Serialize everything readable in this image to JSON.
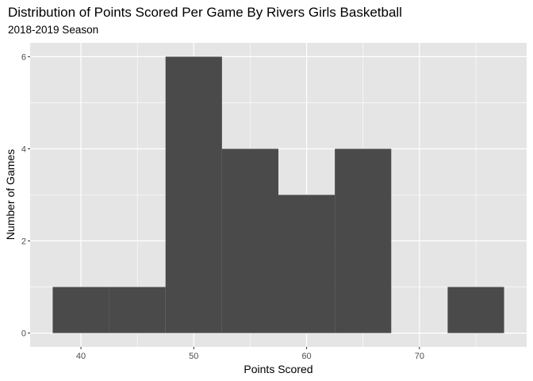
{
  "chart_data": {
    "type": "bar",
    "title": "Distribution of Points Scored Per Game By Rivers Girls Basketball",
    "subtitle": "2018-2019 Season",
    "xlabel": "Points Scored",
    "ylabel": "Number of Games",
    "bins": [
      {
        "x0": 37.5,
        "x1": 42.5,
        "count": 1
      },
      {
        "x0": 42.5,
        "x1": 47.5,
        "count": 1
      },
      {
        "x0": 47.5,
        "x1": 52.5,
        "count": 6
      },
      {
        "x0": 52.5,
        "x1": 57.5,
        "count": 4
      },
      {
        "x0": 57.5,
        "x1": 62.5,
        "count": 3
      },
      {
        "x0": 62.5,
        "x1": 67.5,
        "count": 4
      },
      {
        "x0": 67.5,
        "x1": 72.5,
        "count": 0
      },
      {
        "x0": 72.5,
        "x1": 77.5,
        "count": 1
      }
    ],
    "xlim": [
      35.5,
      79.5
    ],
    "ylim": [
      -0.3,
      6.3
    ],
    "x_ticks": [
      40,
      50,
      60,
      70
    ],
    "x_tick_labels": [
      "40",
      "50",
      "60",
      "70"
    ],
    "y_ticks": [
      0,
      2,
      4,
      6
    ],
    "y_tick_labels": [
      "0",
      "2",
      "4",
      "6"
    ],
    "grid": true,
    "colors": {
      "panel_background": "#e5e5e5",
      "grid_major": "#ffffff",
      "bar_fill": "#4a4a4a"
    }
  }
}
